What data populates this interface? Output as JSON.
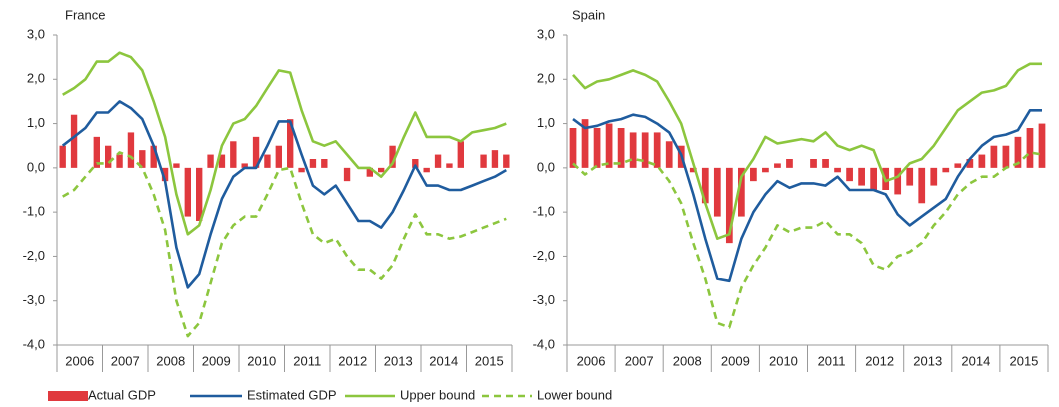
{
  "chart_data": [
    {
      "type": "combo",
      "title": "France",
      "categories": [
        "2006",
        null,
        null,
        null,
        "2007",
        null,
        null,
        null,
        "2008",
        null,
        null,
        null,
        "2009",
        null,
        null,
        null,
        "2010",
        null,
        null,
        null,
        "2011",
        null,
        null,
        null,
        "2012",
        null,
        null,
        null,
        "2013",
        null,
        null,
        null,
        "2014",
        null,
        null,
        null,
        "2015",
        null,
        null,
        null
      ],
      "ylim": [
        -4,
        3
      ],
      "yticks": [
        {
          "value": 3,
          "label": "3,0"
        },
        {
          "value": 2,
          "label": "2,0"
        },
        {
          "value": 1,
          "label": "1,0"
        },
        {
          "value": 0,
          "label": "0,0"
        },
        {
          "value": -1,
          "label": "-1,0"
        },
        {
          "value": -2,
          "label": "-2,0"
        },
        {
          "value": -3,
          "label": "-3,0"
        },
        {
          "value": -4,
          "label": "-4,0"
        }
      ],
      "series": [
        {
          "name": "Actual GDP",
          "kind": "bar",
          "color": "#e0393e",
          "values": [
            0.5,
            1.2,
            0.0,
            0.7,
            0.5,
            0.3,
            0.8,
            0.4,
            0.5,
            -0.3,
            0.1,
            -1.1,
            -1.2,
            0.3,
            0.3,
            0.6,
            0.1,
            0.7,
            0.3,
            0.5,
            1.1,
            -0.1,
            0.2,
            0.2,
            0.0,
            -0.3,
            0.0,
            -0.2,
            -0.1,
            0.5,
            0.0,
            0.2,
            -0.1,
            0.3,
            0.1,
            0.6,
            0.0,
            0.3,
            0.4,
            0.3
          ]
        },
        {
          "name": "Estimated GDP",
          "kind": "line",
          "color": "#1f5c9e",
          "values": [
            0.5,
            0.7,
            0.9,
            1.25,
            1.25,
            1.5,
            1.35,
            1.1,
            0.5,
            -0.3,
            -1.8,
            -2.7,
            -2.4,
            -1.5,
            -0.7,
            -0.2,
            0.0,
            0.0,
            0.5,
            1.05,
            1.05,
            0.3,
            -0.4,
            -0.6,
            -0.4,
            -0.8,
            -1.2,
            -1.2,
            -1.35,
            -1.0,
            -0.5,
            0.05,
            -0.4,
            -0.4,
            -0.5,
            -0.5,
            -0.4,
            -0.3,
            -0.2,
            -0.05
          ]
        },
        {
          "name": "Upper bound",
          "kind": "line",
          "color": "#8cc63e",
          "values": [
            1.65,
            1.8,
            2.0,
            2.4,
            2.4,
            2.6,
            2.5,
            2.2,
            1.5,
            0.7,
            -0.6,
            -1.5,
            -1.3,
            -0.5,
            0.5,
            1.0,
            1.1,
            1.4,
            1.8,
            2.2,
            2.15,
            1.3,
            0.6,
            0.5,
            0.6,
            0.3,
            0.0,
            0.0,
            -0.2,
            0.1,
            0.7,
            1.25,
            0.7,
            0.7,
            0.7,
            0.6,
            0.8,
            0.85,
            0.9,
            1.0
          ]
        },
        {
          "name": "Lower bound",
          "kind": "line",
          "dashed": true,
          "color": "#8cc63e",
          "values": [
            -0.65,
            -0.5,
            -0.2,
            0.1,
            0.1,
            0.35,
            0.25,
            0.0,
            -0.6,
            -1.4,
            -3.0,
            -3.8,
            -3.5,
            -2.6,
            -1.7,
            -1.3,
            -1.1,
            -1.1,
            -0.6,
            -0.05,
            0.0,
            -0.8,
            -1.5,
            -1.7,
            -1.6,
            -2.0,
            -2.3,
            -2.3,
            -2.5,
            -2.2,
            -1.6,
            -1.05,
            -1.5,
            -1.5,
            -1.6,
            -1.55,
            -1.45,
            -1.35,
            -1.25,
            -1.15
          ]
        }
      ]
    },
    {
      "type": "combo",
      "title": "Spain",
      "categories": [
        "2006",
        null,
        null,
        null,
        "2007",
        null,
        null,
        null,
        "2008",
        null,
        null,
        null,
        "2009",
        null,
        null,
        null,
        "2010",
        null,
        null,
        null,
        "2011",
        null,
        null,
        null,
        "2012",
        null,
        null,
        null,
        "2013",
        null,
        null,
        null,
        "2014",
        null,
        null,
        null,
        "2015",
        null,
        null,
        null
      ],
      "ylim": [
        -4,
        3
      ],
      "yticks": [
        {
          "value": 3,
          "label": "3,0"
        },
        {
          "value": 2,
          "label": "2,0"
        },
        {
          "value": 1,
          "label": "1,0"
        },
        {
          "value": 0,
          "label": "0,0"
        },
        {
          "value": -1,
          "label": "-1,0"
        },
        {
          "value": -2,
          "label": "-2,0"
        },
        {
          "value": -3,
          "label": "-3,0"
        },
        {
          "value": -4,
          "label": "-4,0"
        }
      ],
      "series": [
        {
          "kind": "bar",
          "color": "#e0393e",
          "values": [
            0.9,
            1.1,
            0.9,
            1.0,
            0.9,
            0.8,
            0.8,
            0.8,
            0.6,
            0.5,
            -0.1,
            -0.8,
            -1.1,
            -1.7,
            -1.1,
            -0.3,
            -0.1,
            0.1,
            0.2,
            0.0,
            0.2,
            0.2,
            -0.1,
            -0.3,
            -0.4,
            -0.5,
            -0.5,
            -0.6,
            -0.4,
            -0.8,
            -0.4,
            -0.1,
            0.1,
            0.2,
            0.3,
            0.5,
            0.5,
            0.7,
            0.9,
            1.0
          ]
        },
        {
          "kind": "line",
          "color": "#1f5c9e",
          "values": [
            1.1,
            0.9,
            0.95,
            1.05,
            1.1,
            1.2,
            1.15,
            1.0,
            0.8,
            0.3,
            -0.6,
            -1.6,
            -2.5,
            -2.55,
            -1.6,
            -1.0,
            -0.6,
            -0.3,
            -0.45,
            -0.35,
            -0.35,
            -0.4,
            -0.2,
            -0.5,
            -0.5,
            -0.5,
            -0.6,
            -1.05,
            -1.3,
            -1.1,
            -0.9,
            -0.7,
            -0.2,
            0.2,
            0.5,
            0.7,
            0.75,
            0.85,
            1.3,
            1.3
          ]
        },
        {
          "kind": "line",
          "color": "#8cc63e",
          "values": [
            2.1,
            1.8,
            1.95,
            2.0,
            2.1,
            2.2,
            2.1,
            1.95,
            1.5,
            1.0,
            0.1,
            -0.8,
            -1.6,
            -1.5,
            -0.2,
            0.2,
            0.7,
            0.55,
            0.6,
            0.65,
            0.6,
            0.8,
            0.5,
            0.4,
            0.5,
            0.4,
            -0.3,
            -0.2,
            0.1,
            0.2,
            0.5,
            0.9,
            1.3,
            1.5,
            1.7,
            1.75,
            1.85,
            2.2,
            2.35,
            2.35
          ]
        },
        {
          "kind": "line",
          "dashed": true,
          "color": "#8cc63e",
          "values": [
            0.1,
            -0.15,
            0.05,
            0.1,
            0.1,
            0.2,
            0.15,
            0.05,
            -0.3,
            -0.8,
            -1.7,
            -2.5,
            -3.5,
            -3.6,
            -2.7,
            -2.2,
            -1.8,
            -1.3,
            -1.45,
            -1.35,
            -1.35,
            -1.2,
            -1.5,
            -1.5,
            -1.7,
            -2.2,
            -2.3,
            -2.0,
            -1.9,
            -1.7,
            -1.3,
            -1.0,
            -0.6,
            -0.35,
            -0.2,
            -0.2,
            0.0,
            0.1,
            0.35,
            0.3
          ]
        }
      ]
    }
  ]
}
